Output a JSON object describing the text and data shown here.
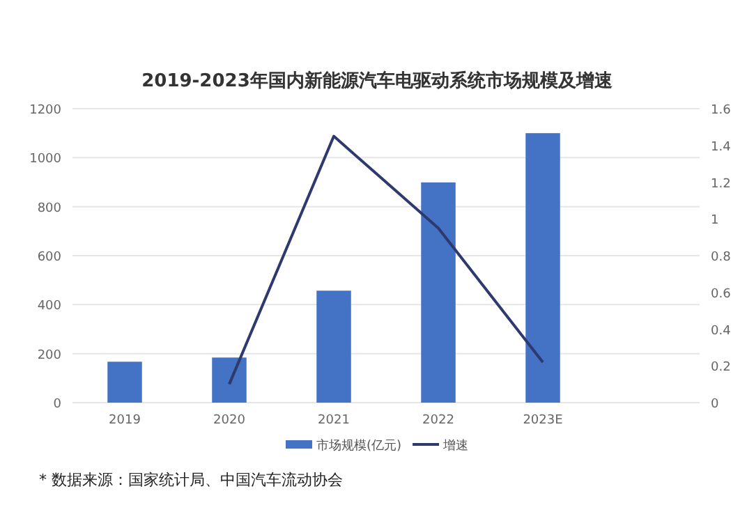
{
  "chart_data": {
    "type": "bar",
    "title": "2019-2023年国内新能源汽车电驱动系统市场规模及增速",
    "categories": [
      "2019",
      "2020",
      "2021",
      "2022",
      "2023E",
      null
    ],
    "series": [
      {
        "name": "市场规模(亿元)",
        "color": "#4472c4",
        "values": [
          167,
          184,
          457,
          899,
          1100,
          null
        ]
      },
      {
        "name": "增速",
        "type": "line",
        "axis": "y2",
        "color": "#2e3a6e",
        "values": [
          null,
          0.1,
          1.45,
          0.95,
          0.22,
          null
        ]
      }
    ],
    "ylim": [
      0,
      1200
    ],
    "yticks": [
      0,
      200,
      400,
      600,
      800,
      1000,
      1200
    ],
    "y2lim": [
      0,
      1.6
    ],
    "y2ticks": [
      0,
      0.2,
      0.4,
      0.6,
      0.8,
      1,
      1.2,
      1.4,
      1.6
    ],
    "grid": "y",
    "legend": "bottom",
    "annotations": [
      "* 数据来源：国家统计局、中国汽车流动协会"
    ]
  }
}
